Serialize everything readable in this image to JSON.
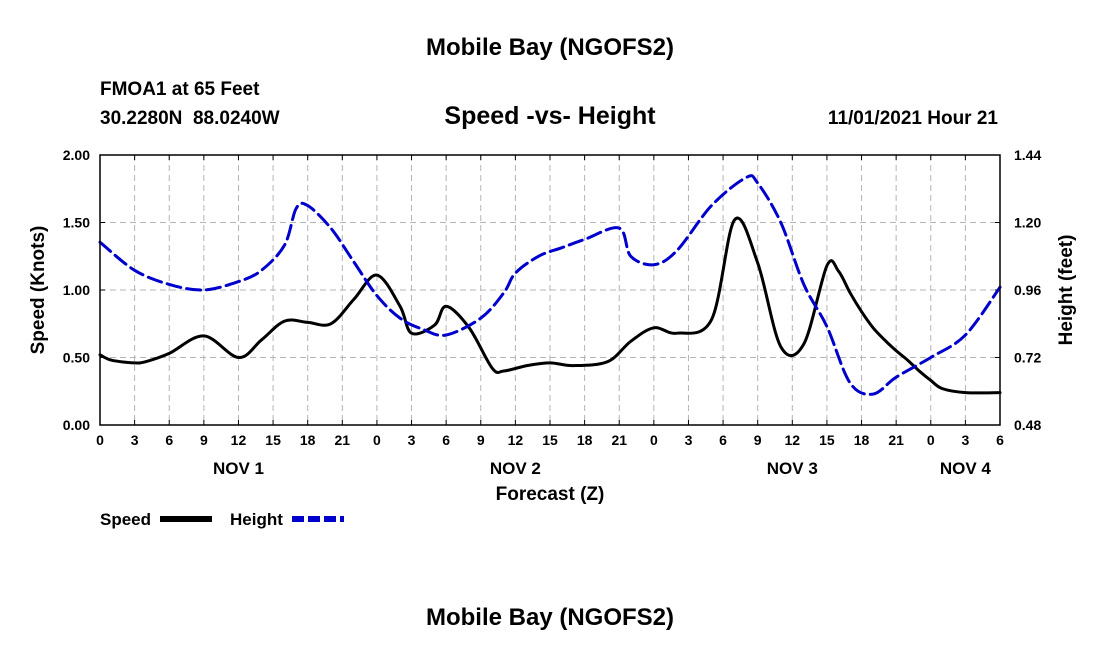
{
  "page_title": "Mobile Bay (NGOFS2)",
  "footer_title": "Mobile Bay (NGOFS2)",
  "station": {
    "name": "FMOA1 at 65 Feet",
    "coords": "30.2280N  88.0240W"
  },
  "chart_data": {
    "type": "line",
    "title": "Speed -vs- Height",
    "timestamp": "11/01/2021 Hour 21",
    "xlabel": "Forecast (Z)",
    "ylabel": "Speed (Knots)",
    "y2label": "Height (feet)",
    "xlim": [
      0,
      78
    ],
    "ylim": [
      0,
      2
    ],
    "y2lim": [
      0.48,
      1.44
    ],
    "grid": true,
    "legend_position": "bottom-left",
    "x_ticks": [
      0,
      3,
      6,
      9,
      12,
      15,
      18,
      21,
      24,
      27,
      30,
      33,
      36,
      39,
      42,
      45,
      48,
      51,
      54,
      57,
      60,
      63,
      66,
      69,
      72,
      75,
      78
    ],
    "x_tick_labels": [
      "0",
      "3",
      "6",
      "9",
      "12",
      "15",
      "18",
      "21",
      "0",
      "3",
      "6",
      "9",
      "12",
      "15",
      "18",
      "21",
      "0",
      "3",
      "6",
      "9",
      "12",
      "15",
      "18",
      "21",
      "0",
      "3",
      "6"
    ],
    "y_ticks": [
      0,
      0.5,
      1,
      1.5,
      2
    ],
    "y_tick_labels": [
      "0.00",
      "0.50",
      "1.00",
      "1.50",
      "2.00"
    ],
    "y2_ticks": [
      0.48,
      0.72,
      0.96,
      1.2,
      1.44
    ],
    "y2_tick_labels": [
      "0.48",
      "0.72",
      "0.96",
      "1.20",
      "1.44"
    ],
    "day_labels": [
      {
        "x": 12,
        "label": "NOV 1"
      },
      {
        "x": 36,
        "label": "NOV 2"
      },
      {
        "x": 60,
        "label": "NOV 3"
      },
      {
        "x": 75,
        "label": "NOV 4"
      }
    ],
    "series": [
      {
        "name": "Speed",
        "axis": "left",
        "color": "#000000",
        "dash": "solid",
        "x": [
          0,
          1,
          3,
          4,
          6,
          9,
          12,
          14,
          16,
          18,
          20,
          22,
          24,
          26,
          27,
          29,
          30,
          32,
          34,
          35,
          37,
          39,
          41,
          44,
          46,
          48,
          50,
          53,
          55,
          57,
          59,
          61,
          63,
          64,
          65,
          66,
          67,
          68,
          69,
          70,
          71,
          72,
          73,
          75,
          78
        ],
        "values": [
          0.52,
          0.48,
          0.46,
          0.47,
          0.53,
          0.66,
          0.5,
          0.63,
          0.77,
          0.76,
          0.75,
          0.93,
          1.11,
          0.88,
          0.68,
          0.74,
          0.88,
          0.72,
          0.42,
          0.4,
          0.44,
          0.46,
          0.44,
          0.47,
          0.62,
          0.72,
          0.68,
          0.78,
          1.52,
          1.2,
          0.58,
          0.6,
          1.18,
          1.14,
          0.98,
          0.84,
          0.72,
          0.63,
          0.55,
          0.48,
          0.4,
          0.33,
          0.27,
          0.24,
          0.24
        ]
      },
      {
        "name": "Height",
        "axis": "right",
        "color": "#0000cc",
        "dash": "dashed",
        "x": [
          0,
          3,
          6,
          9,
          12,
          14,
          16,
          17,
          18,
          20,
          22,
          24,
          26,
          28,
          30,
          33,
          35,
          36,
          38,
          40,
          42,
          45,
          46,
          48,
          50,
          53,
          56,
          57,
          59,
          61,
          63,
          65,
          67,
          69,
          72,
          75,
          78
        ],
        "values": [
          1.13,
          1.03,
          0.98,
          0.96,
          0.99,
          1.03,
          1.12,
          1.25,
          1.26,
          1.18,
          1.06,
          0.94,
          0.86,
          0.82,
          0.8,
          0.86,
          0.95,
          1.02,
          1.08,
          1.11,
          1.14,
          1.18,
          1.08,
          1.05,
          1.1,
          1.26,
          1.36,
          1.34,
          1.2,
          0.98,
          0.83,
          0.63,
          0.59,
          0.65,
          0.72,
          0.8,
          0.97
        ]
      }
    ]
  }
}
